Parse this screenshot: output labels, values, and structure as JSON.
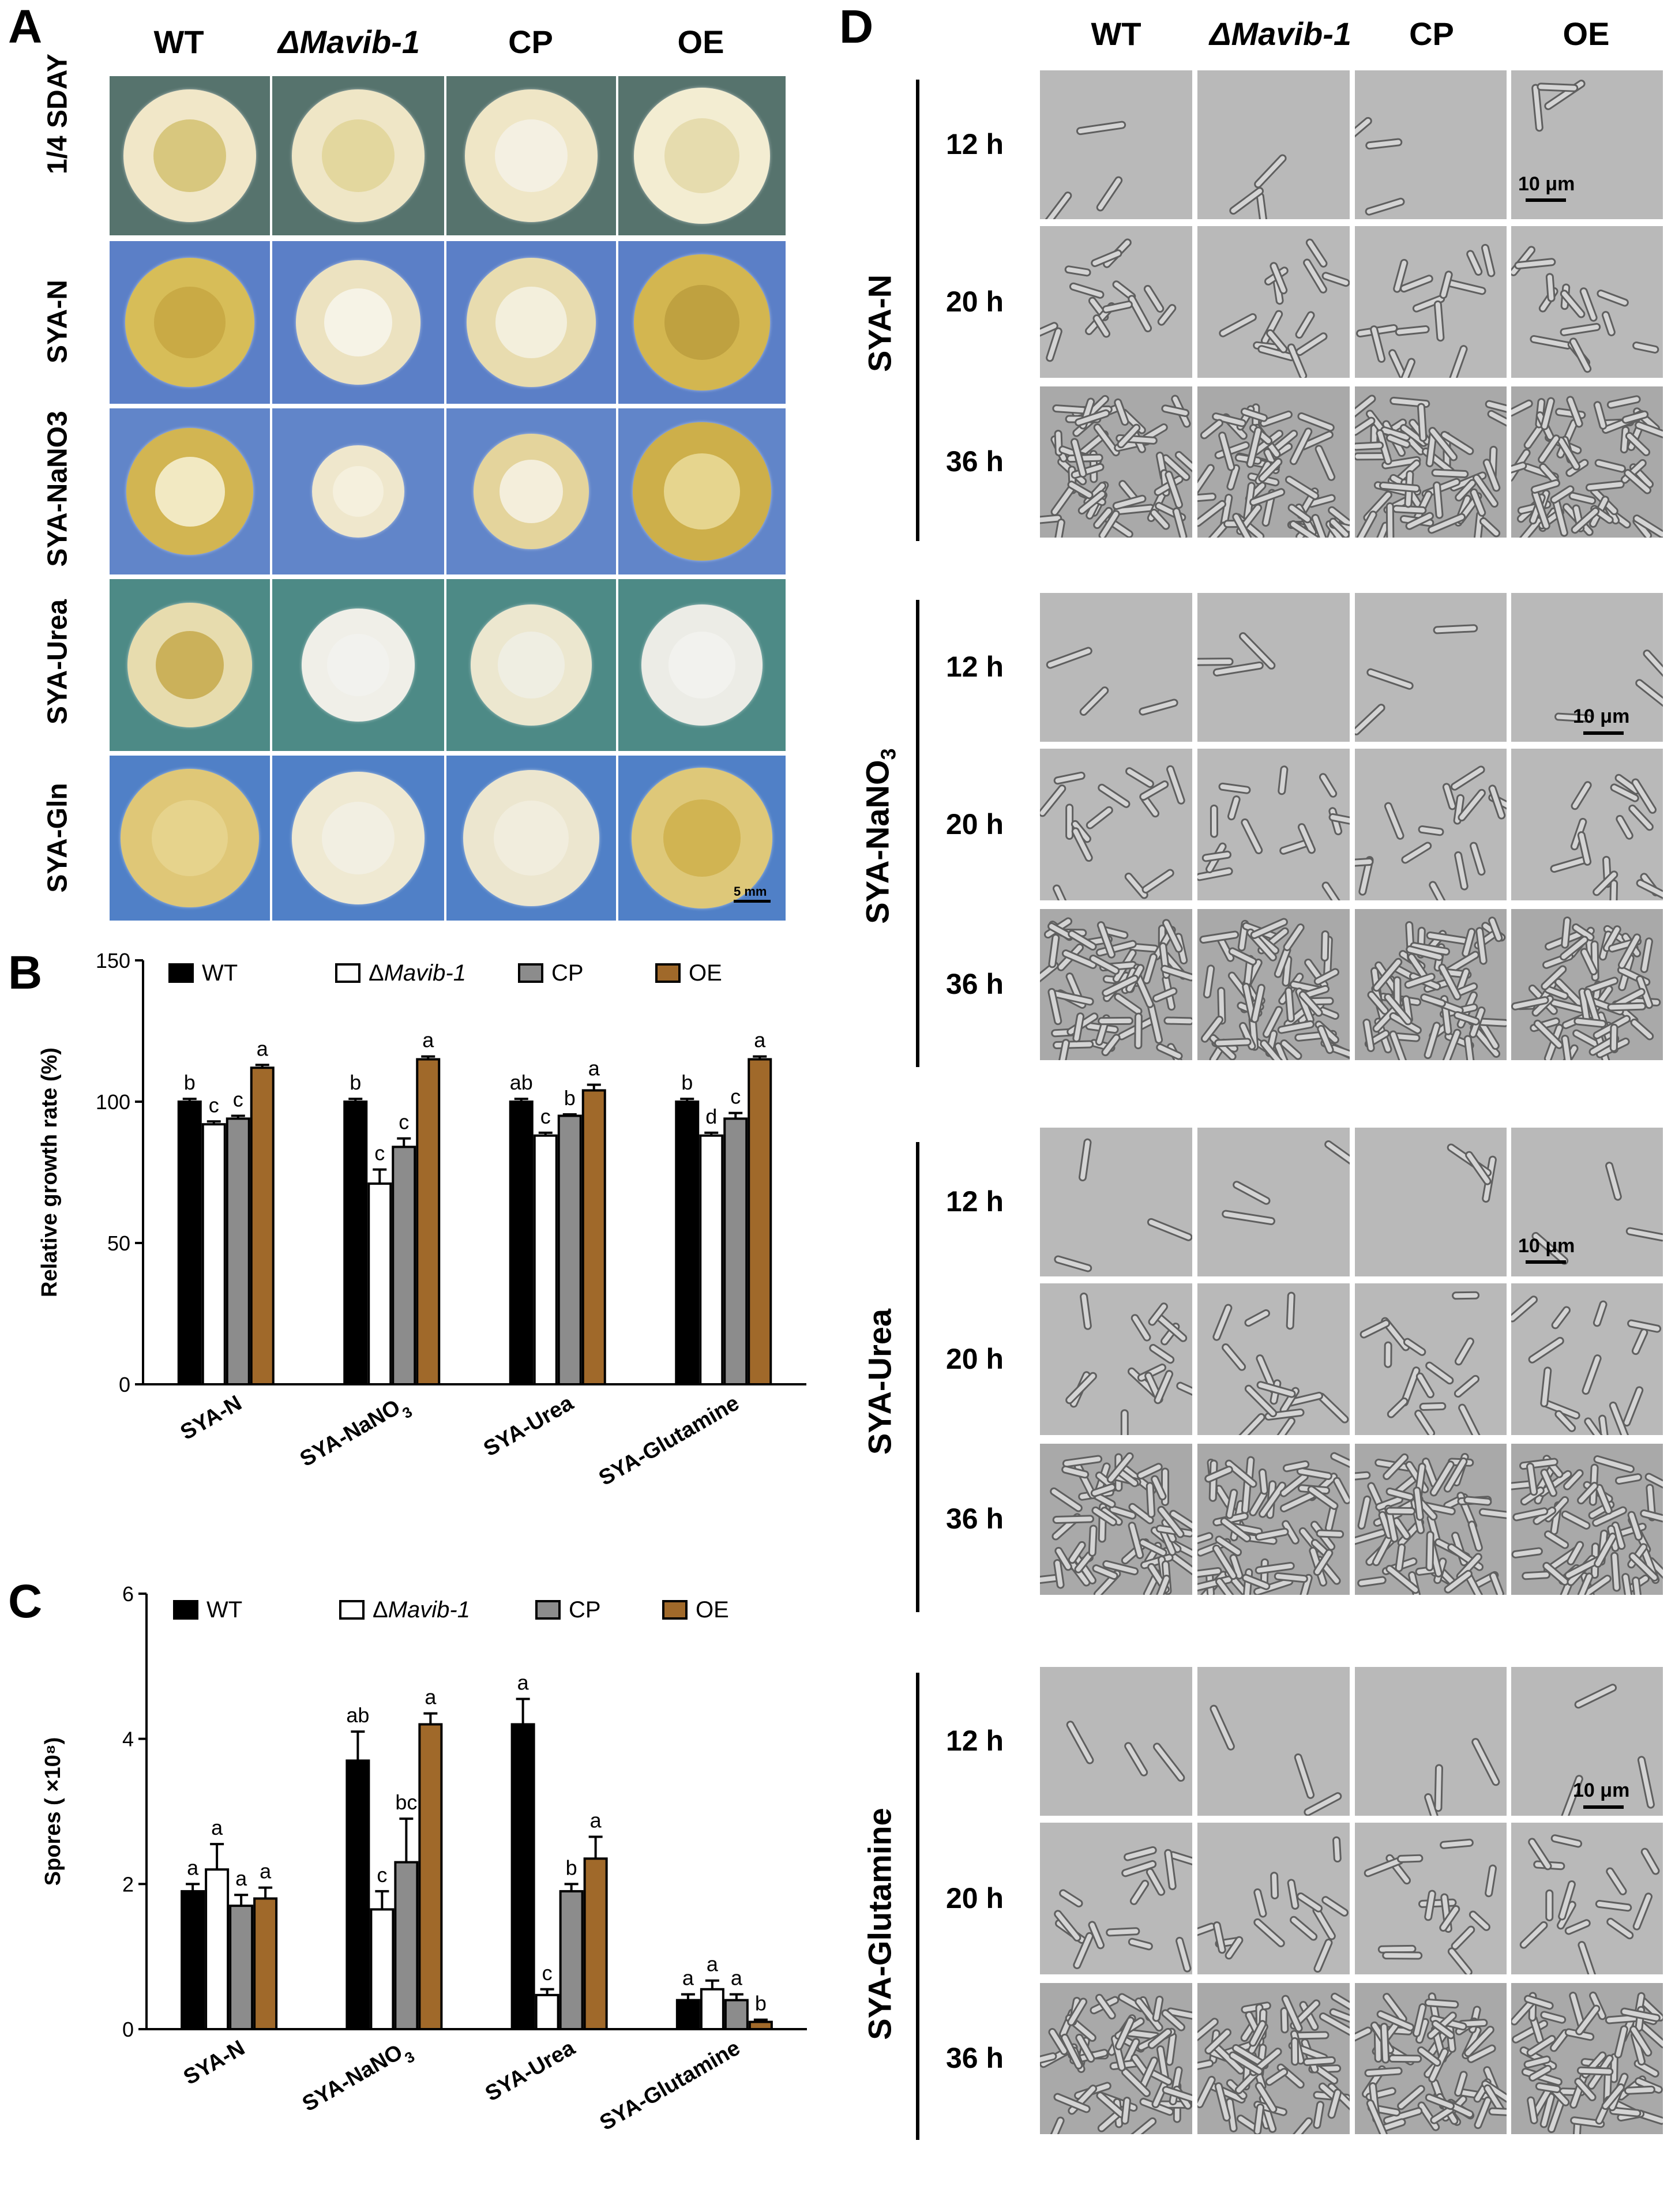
{
  "panel_a": {
    "letter": "A",
    "columns": [
      "WT",
      "ΔMavib-1",
      "CP",
      "OE"
    ],
    "rows": [
      "1/4 SDAY",
      "SYA-N",
      "SYA-NaNO3",
      "SYA-Urea",
      "SYA-Gln"
    ],
    "scale_label": "5 mm",
    "colors": {
      "plate_rim_row1": "#4b6a66",
      "plate_blue": "#4f79c0",
      "plate_green": "#3f7c7a",
      "colony_cream": "#f2ecd0",
      "colony_yellow": "#d9c060"
    }
  },
  "panel_b": {
    "letter": "B",
    "ylabel": "Relative growth rate (%)",
    "legend": [
      "WT",
      "ΔMavib-1",
      "CP",
      "OE"
    ],
    "chart_data": {
      "type": "bar",
      "categories": [
        "SYA-N",
        "SYA-NaNO3",
        "SYA-Urea",
        "SYA-Glutamine"
      ],
      "ylabel": "Relative growth rate (%)",
      "ylim": [
        0,
        150
      ],
      "yticks": [
        0,
        50,
        100,
        150
      ],
      "legend_position": "top",
      "series": [
        {
          "name": "WT",
          "color": "#000000",
          "values": [
            100,
            100,
            100,
            100
          ],
          "errors": [
            1,
            1,
            1,
            1
          ],
          "letters": [
            "b",
            "b",
            "ab",
            "b"
          ]
        },
        {
          "name": "ΔMavib-1",
          "color": "#ffffff",
          "values": [
            92,
            71,
            88,
            88
          ],
          "errors": [
            1,
            5,
            1,
            1
          ],
          "letters": [
            "c",
            "c",
            "c",
            "d"
          ]
        },
        {
          "name": "CP",
          "color": "#8c8c8c",
          "values": [
            94,
            84,
            95,
            94
          ],
          "errors": [
            1,
            3,
            0.5,
            2
          ],
          "letters": [
            "c",
            "c",
            "b",
            "c"
          ]
        },
        {
          "name": "OE",
          "color": "#a0692a",
          "values": [
            112,
            115,
            104,
            115
          ],
          "errors": [
            1,
            1,
            2,
            1
          ],
          "letters": [
            "a",
            "a",
            "a",
            "a"
          ]
        }
      ]
    }
  },
  "panel_c": {
    "letter": "C",
    "ylabel": "Spores ( ×10⁸)",
    "legend": [
      "WT",
      "ΔMavib-1",
      "CP",
      "OE"
    ],
    "chart_data": {
      "type": "bar",
      "categories": [
        "SYA-N",
        "SYA-NaNO3",
        "SYA-Urea",
        "SYA-Glutamine"
      ],
      "ylabel": "Spores ( ×10⁸)",
      "ylim": [
        0,
        6
      ],
      "yticks": [
        0,
        2,
        4,
        6
      ],
      "legend_position": "top",
      "series": [
        {
          "name": "WT",
          "color": "#000000",
          "values": [
            1.9,
            3.7,
            4.2,
            0.4
          ],
          "errors": [
            0.1,
            0.4,
            0.35,
            0.08
          ],
          "letters": [
            "a",
            "ab",
            "a",
            "a"
          ]
        },
        {
          "name": "ΔMavib-1",
          "color": "#ffffff",
          "values": [
            2.2,
            1.65,
            0.47,
            0.55
          ],
          "errors": [
            0.35,
            0.25,
            0.08,
            0.12
          ],
          "letters": [
            "a",
            "c",
            "c",
            "a"
          ]
        },
        {
          "name": "CP",
          "color": "#8c8c8c",
          "values": [
            1.7,
            2.3,
            1.9,
            0.4
          ],
          "errors": [
            0.15,
            0.6,
            0.1,
            0.08
          ],
          "letters": [
            "a",
            "bc",
            "b",
            "a"
          ]
        },
        {
          "name": "OE",
          "color": "#a0692a",
          "values": [
            1.8,
            4.2,
            2.35,
            0.1
          ],
          "errors": [
            0.15,
            0.15,
            0.3,
            0.03
          ],
          "letters": [
            "a",
            "a",
            "a",
            "b"
          ]
        }
      ]
    }
  },
  "panel_d": {
    "letter": "D",
    "columns": [
      "WT",
      "ΔMavib-1",
      "CP",
      "OE"
    ],
    "times": [
      "12 h",
      "20 h",
      "36 h"
    ],
    "scale_label": "10 μm",
    "groups": [
      {
        "label": "SYA-N"
      },
      {
        "label_main": "SYA-NaNO",
        "label_sub": "3"
      },
      {
        "label": "SYA-Urea"
      },
      {
        "label": "SYA-Glutamine"
      }
    ]
  }
}
